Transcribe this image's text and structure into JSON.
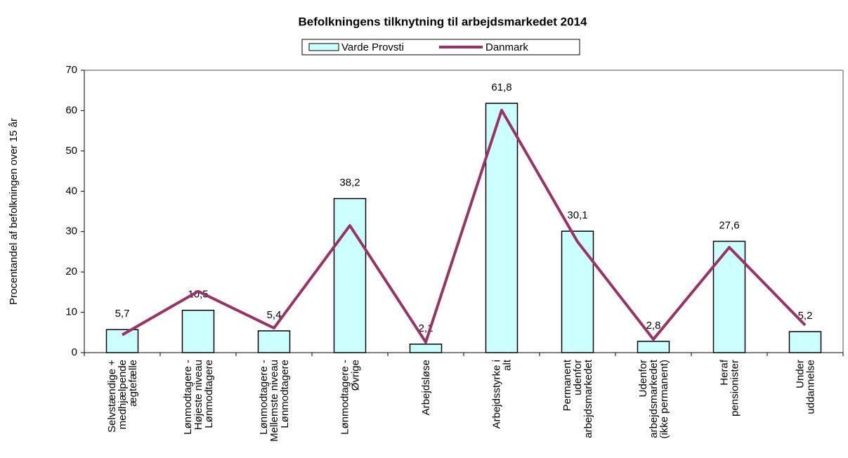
{
  "chart_data": {
    "type": "bar",
    "title": "Befolkningens tilknytning til arbejdsmarkedet 2014",
    "y_label": "Procentandel af befolkningen over 15 år",
    "categories": [
      "Selvstændige +\nmedhjælpende\nægtefælle",
      "Lønmodtagere -\nHøjeste niveau\nLønmodtagere",
      "Lønmodtagere -\nMellemste niveau\nLønmodtagere",
      "Lønmodtagere -\nØvrige",
      "Arbejdsløse",
      "Arbejdsstyrke i\nalt",
      "Permanent\nudenfor\narbejdsmarkedet",
      "Udenfor\narbejdsmarkedet\n(ikke permanent)",
      "Heraf\npensionister",
      "Under\nuddannelse"
    ],
    "series": [
      {
        "name": "Varde Provsti",
        "type": "bar",
        "color": "#ccffff",
        "values": [
          5.7,
          10.5,
          5.4,
          38.2,
          2.1,
          61.8,
          30.1,
          2.8,
          27.6,
          5.2
        ],
        "value_labels": [
          "5,7",
          "10,5",
          "5,4",
          "38,2",
          "2,1",
          "61,8",
          "30,1",
          "2,8",
          "27,6",
          "5,2"
        ]
      },
      {
        "name": "Danmark",
        "type": "line",
        "color": "#993366",
        "values": [
          4.4,
          15.2,
          6.1,
          31.5,
          2.6,
          60.1,
          27.5,
          3.3,
          26.1,
          6.8
        ]
      }
    ],
    "ylim": [
      0,
      70
    ],
    "yticks": [
      0,
      10,
      20,
      30,
      40,
      50,
      60,
      70
    ],
    "grid": false
  }
}
